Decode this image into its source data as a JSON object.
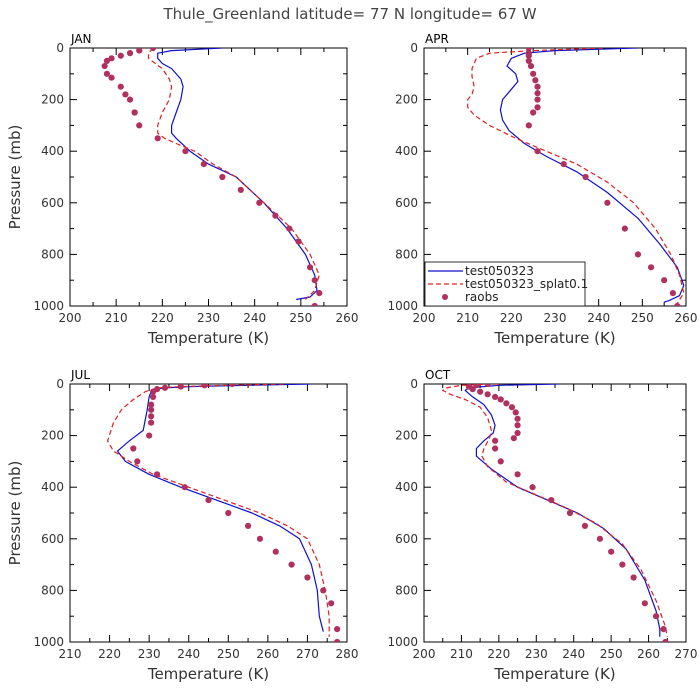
{
  "title": "Thule_Greenland  latitude= 77 N longitude= 67 W",
  "legend": {
    "entries": [
      "test050323",
      "test050323_splat0.1",
      "raobs"
    ],
    "colors": [
      "#1010cc",
      "#e02020",
      "#b03060"
    ],
    "styles": [
      "solid",
      "dashed",
      "markers"
    ],
    "placement": "lower-right of APR panel"
  },
  "chart_data": [
    {
      "type": "line",
      "title": "JAN",
      "xlabel": "Temperature (K)",
      "ylabel": "Pressure (mb)",
      "xlim": [
        200,
        260
      ],
      "ylim": [
        1000,
        0
      ],
      "xticks": [
        200,
        210,
        220,
        230,
        240,
        250,
        260
      ],
      "yticks": [
        0,
        200,
        400,
        600,
        800,
        1000
      ],
      "series": [
        {
          "name": "test050323",
          "style": "solid",
          "color": "#1010cc",
          "x": [
            233,
            222,
            219,
            219,
            220,
            222,
            224,
            224.5,
            224,
            223,
            222,
            222,
            223,
            226,
            230,
            236,
            242,
            247,
            251,
            253,
            253.5,
            252,
            249
          ],
          "y": [
            0,
            10,
            20,
            40,
            60,
            80,
            120,
            150,
            200,
            250,
            300,
            330,
            350,
            400,
            450,
            500,
            600,
            700,
            800,
            880,
            940,
            965,
            975
          ]
        },
        {
          "name": "test050323_splat0.1",
          "style": "dashed",
          "color": "#e02020",
          "x": [
            218,
            217,
            217,
            218.5,
            220,
            221.5,
            222,
            221.5,
            220,
            219,
            219,
            220.5,
            223,
            227,
            231,
            236,
            242,
            248,
            252,
            254,
            253,
            251
          ],
          "y": [
            0,
            20,
            40,
            60,
            80,
            120,
            150,
            200,
            250,
            300,
            330,
            350,
            370,
            400,
            450,
            500,
            600,
            700,
            800,
            880,
            940,
            975
          ]
        },
        {
          "name": "raobs",
          "style": "markers",
          "color": "#b03060",
          "x": [
            218,
            215,
            213,
            211,
            209,
            208,
            207.5,
            208,
            209,
            211,
            212,
            213,
            214,
            214,
            215,
            219,
            225,
            229,
            233,
            237,
            241,
            244.5,
            247.5,
            249.5,
            252,
            253,
            254,
            253
          ],
          "y": [
            0,
            10,
            20,
            30,
            40,
            50,
            70,
            100,
            115,
            150,
            180,
            200,
            250,
            250,
            300,
            350,
            400,
            450,
            500,
            550,
            600,
            650,
            700,
            750,
            850,
            900,
            950,
            1000
          ]
        }
      ]
    },
    {
      "type": "line",
      "title": "APR",
      "xlabel": "Temperature (K)",
      "ylabel": "",
      "xlim": [
        200,
        260
      ],
      "ylim": [
        1000,
        0
      ],
      "xticks": [
        200,
        210,
        220,
        230,
        240,
        250,
        260
      ],
      "yticks": [
        0,
        200,
        400,
        600,
        800,
        1000
      ],
      "series": [
        {
          "name": "test050323",
          "style": "solid",
          "color": "#1010cc",
          "x": [
            249,
            230,
            223,
            220,
            219,
            221,
            221.5,
            220,
            218,
            217.5,
            218,
            219.5,
            223,
            228,
            235,
            242,
            249,
            254,
            258,
            259.5,
            258.5,
            256,
            255
          ],
          "y": [
            0,
            10,
            20,
            40,
            70,
            100,
            130,
            160,
            200,
            240,
            280,
            320,
            370,
            420,
            480,
            560,
            660,
            760,
            850,
            920,
            960,
            980,
            985
          ]
        },
        {
          "name": "test050323_splat0.1",
          "style": "dashed",
          "color": "#e02020",
          "x": [
            241,
            225,
            215,
            212,
            211,
            211,
            211.5,
            211,
            210,
            210,
            211.5,
            215,
            221,
            228,
            235,
            242,
            248,
            253,
            256.5,
            258.5,
            259.5,
            258
          ],
          "y": [
            0,
            10,
            20,
            40,
            80,
            110,
            150,
            180,
            200,
            230,
            260,
            300,
            350,
            400,
            450,
            520,
            600,
            700,
            800,
            880,
            950,
            990
          ]
        },
        {
          "name": "raobs",
          "style": "markers",
          "color": "#b03060",
          "x": [
            224,
            224,
            224,
            224,
            224.5,
            225,
            225.5,
            226,
            226,
            226,
            226,
            225,
            224,
            226,
            232,
            237,
            242,
            246,
            249,
            252,
            255,
            257,
            258
          ],
          "y": [
            0,
            20,
            30,
            50,
            70,
            100,
            125,
            150,
            175,
            200,
            230,
            250,
            300,
            400,
            450,
            500,
            600,
            700,
            800,
            850,
            900,
            950,
            1000
          ]
        }
      ]
    },
    {
      "type": "line",
      "title": "JUL",
      "xlabel": "Temperature (K)",
      "ylabel": "Pressure (mb)",
      "xlim": [
        210,
        280
      ],
      "ylim": [
        1000,
        0
      ],
      "xticks": [
        210,
        220,
        230,
        240,
        250,
        260,
        270,
        280
      ],
      "yticks": [
        0,
        200,
        400,
        600,
        800,
        1000
      ],
      "series": [
        {
          "name": "test050323",
          "style": "solid",
          "color": "#1010cc",
          "x": [
            271,
            255,
            240,
            234,
            231,
            230.5,
            230,
            229.5,
            228.5,
            225,
            222,
            224,
            230,
            238,
            247,
            256,
            263,
            268,
            271,
            272.5,
            273,
            274
          ],
          "y": [
            0,
            5,
            10,
            15,
            20,
            30,
            50,
            100,
            180,
            220,
            260,
            300,
            350,
            400,
            450,
            500,
            550,
            600,
            700,
            800,
            900,
            960
          ]
        },
        {
          "name": "test050323_splat0.1",
          "style": "dashed",
          "color": "#e02020",
          "x": [
            264,
            250,
            238,
            232,
            229,
            226,
            223,
            221,
            219.5,
            221,
            225,
            231,
            240,
            249,
            258,
            265,
            270,
            273,
            274.5,
            275.5,
            275.5
          ],
          "y": [
            0,
            5,
            10,
            15,
            30,
            60,
            100,
            150,
            220,
            260,
            300,
            350,
            400,
            450,
            500,
            550,
            600,
            700,
            800,
            900,
            980
          ]
        },
        {
          "name": "raobs",
          "style": "markers",
          "color": "#b03060",
          "x": [
            251,
            244,
            238,
            234,
            232,
            231,
            231,
            230.5,
            230.5,
            230.5,
            230.5,
            230,
            226,
            227,
            232,
            239,
            245,
            250,
            255,
            258,
            262,
            266,
            270,
            274,
            276,
            277.5,
            277.5
          ],
          "y": [
            0,
            5,
            10,
            15,
            20,
            30,
            50,
            80,
            100,
            125,
            150,
            200,
            250,
            300,
            350,
            400,
            450,
            500,
            550,
            600,
            650,
            700,
            750,
            800,
            850,
            950,
            1000
          ]
        }
      ]
    },
    {
      "type": "line",
      "title": "OCT",
      "xlabel": "Temperature (K)",
      "ylabel": "",
      "xlim": [
        200,
        270
      ],
      "ylim": [
        1000,
        0
      ],
      "xticks": [
        200,
        210,
        220,
        230,
        240,
        250,
        260,
        270
      ],
      "yticks": [
        0,
        200,
        400,
        600,
        800,
        1000
      ],
      "series": [
        {
          "name": "test050323",
          "style": "solid",
          "color": "#1010cc",
          "x": [
            236,
            220,
            212,
            211,
            213,
            216,
            218,
            219,
            218.5,
            216,
            214,
            214,
            218,
            225,
            233,
            241,
            248,
            254,
            259,
            262,
            263,
            263
          ],
          "y": [
            0,
            5,
            15,
            25,
            50,
            80,
            120,
            160,
            190,
            220,
            250,
            280,
            330,
            400,
            450,
            500,
            560,
            640,
            760,
            880,
            950,
            980
          ]
        },
        {
          "name": "test050323_splat0.1",
          "style": "dashed",
          "color": "#e02020",
          "x": [
            220,
            210,
            206,
            205,
            207,
            211,
            215,
            217,
            218,
            217.5,
            216,
            215.5,
            217,
            222,
            230,
            238,
            246,
            253,
            258,
            262,
            264.5,
            265
          ],
          "y": [
            0,
            5,
            15,
            25,
            40,
            60,
            90,
            130,
            180,
            210,
            250,
            280,
            320,
            380,
            430,
            480,
            540,
            620,
            720,
            840,
            940,
            980
          ]
        },
        {
          "name": "raobs",
          "style": "markers",
          "color": "#b03060",
          "x": [
            217,
            214,
            212,
            213,
            215,
            217,
            219,
            220.5,
            222,
            223.5,
            224.5,
            225,
            225,
            225,
            224,
            219,
            219,
            220.5,
            225,
            229,
            234,
            239,
            243,
            247,
            250,
            253,
            256,
            259,
            262,
            264,
            264.5
          ],
          "y": [
            0,
            5,
            10,
            20,
            30,
            40,
            50,
            60,
            75,
            90,
            110,
            135,
            160,
            190,
            210,
            220,
            250,
            300,
            350,
            400,
            450,
            500,
            550,
            600,
            650,
            700,
            750,
            850,
            900,
            950,
            1000
          ]
        }
      ]
    }
  ]
}
